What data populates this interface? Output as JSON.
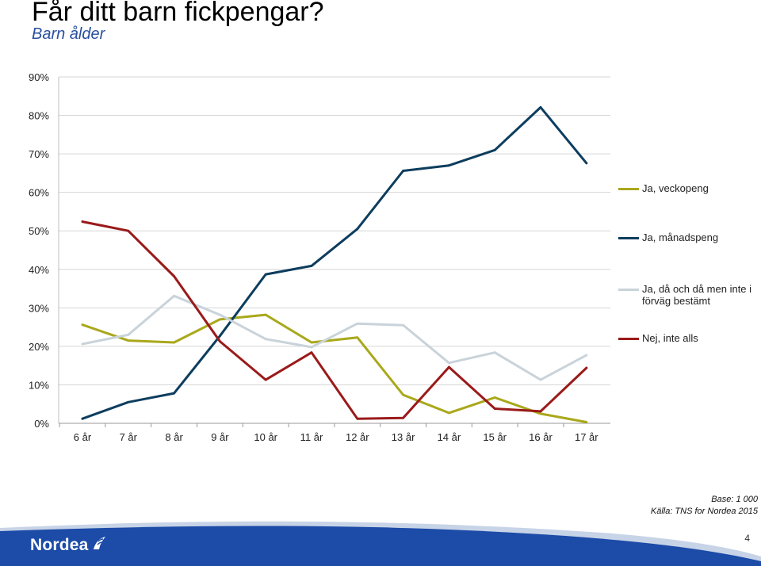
{
  "slide": {
    "title": "Får ditt barn fickpengar?",
    "subtitle": "Barn ålder",
    "source_lines": [
      "Base: 1 000",
      "Källa: TNS for Nordea 2015"
    ],
    "logo_text": "Nordea",
    "page_number": "4"
  },
  "chart_data": {
    "type": "line",
    "title": "Får ditt barn fickpengar?",
    "subtitle": "Barn ålder",
    "xlabel": "",
    "ylabel": "",
    "categories": [
      "6 år",
      "7 år",
      "8 år",
      "9 år",
      "10 år",
      "11 år",
      "12 år",
      "13 år",
      "14 år",
      "15 år",
      "16 år",
      "17 år"
    ],
    "ylim": [
      0,
      90
    ],
    "yticks": [
      0,
      10,
      20,
      30,
      40,
      50,
      60,
      70,
      80,
      90
    ],
    "ytick_labels": [
      "0%",
      "10%",
      "20%",
      "30%",
      "40%",
      "50%",
      "60%",
      "70%",
      "80%",
      "90%"
    ],
    "grid": true,
    "legend_position": "right",
    "series": [
      {
        "name": "Ja, veckopeng",
        "color": "#a9a81c",
        "values": [
          25.6,
          21.5,
          21.0,
          27.0,
          28.2,
          21.0,
          22.3,
          7.4,
          2.7,
          6.7,
          2.5,
          0.3
        ]
      },
      {
        "name": "Ja, månadspeng",
        "color": "#0d3d5e",
        "values": [
          1.2,
          5.5,
          7.8,
          22.7,
          38.7,
          40.9,
          50.5,
          65.6,
          67.0,
          71.0,
          82.1,
          67.6
        ]
      },
      {
        "name": "Ja, då och då men inte i förväg bestämt",
        "color": "#c9d3da",
        "values": [
          20.6,
          23.0,
          33.1,
          28.2,
          21.9,
          19.8,
          25.9,
          25.5,
          15.7,
          18.4,
          11.3,
          17.7
        ]
      },
      {
        "name": "Nej, inte alls",
        "color": "#9a1a1a",
        "values": [
          52.4,
          50.0,
          38.2,
          21.3,
          11.3,
          18.4,
          1.2,
          1.4,
          14.6,
          3.8,
          3.1,
          14.4
        ]
      }
    ]
  }
}
